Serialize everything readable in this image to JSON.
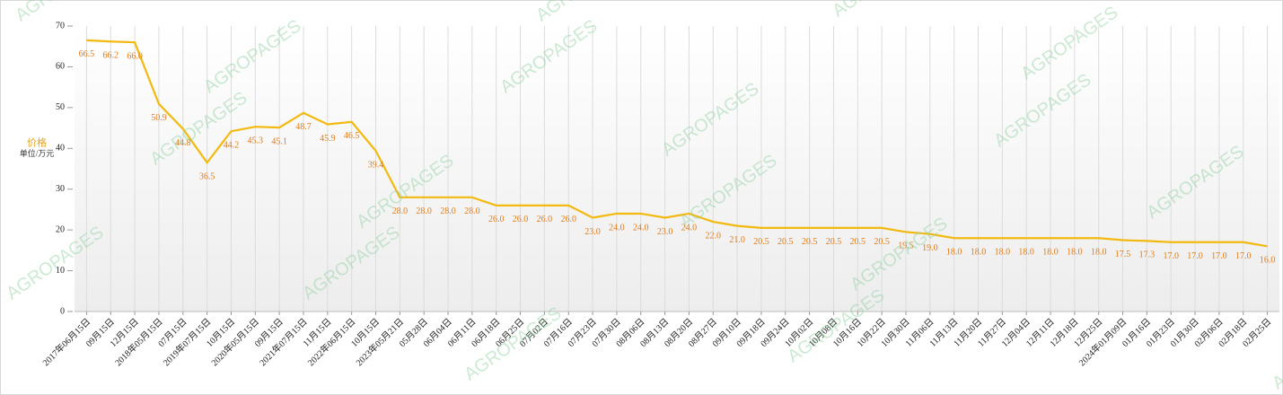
{
  "chart_data": {
    "type": "line",
    "y_label": "价格",
    "y_unit": "单位/万元",
    "watermark": "AGROPAGES",
    "categories": [
      "2017年06月15日",
      "09月15日",
      "12月15日",
      "2018年05月15日",
      "07月15日",
      "2019年07月15日",
      "10月15日",
      "2020年05月15日",
      "09月15日",
      "2021年07月15日",
      "11月15日",
      "2022年06月15日",
      "10月15日",
      "2023年05月21日",
      "05月28日",
      "06月04日",
      "06月11日",
      "06月18日",
      "06月25日",
      "07月02日",
      "07月16日",
      "07月23日",
      "07月30日",
      "08月06日",
      "08月13日",
      "08月20日",
      "08月27日",
      "09月10日",
      "09月18日",
      "09月24日",
      "10月02日",
      "10月08日",
      "10月16日",
      "10月22日",
      "10月30日",
      "11月06日",
      "11月13日",
      "11月20日",
      "11月27日",
      "12月04日",
      "12月11日",
      "12月18日",
      "12月25日",
      "2024年01月09日",
      "01月16日",
      "01月23日",
      "01月30日",
      "02月06日",
      "02月18日",
      "02月25日"
    ],
    "series": [
      {
        "name": "价格",
        "color": "#f2b90f",
        "values": [
          66.5,
          66.2,
          66.0,
          50.9,
          44.8,
          36.5,
          44.2,
          45.3,
          45.1,
          48.7,
          45.9,
          46.5,
          39.4,
          28.0,
          28.0,
          28.0,
          28.0,
          26.0,
          26.0,
          26.0,
          26.0,
          23.0,
          24.0,
          24.0,
          23.0,
          24.0,
          22.0,
          21.0,
          20.5,
          20.5,
          20.5,
          20.5,
          20.5,
          20.5,
          19.5,
          19.0,
          18.0,
          18.0,
          18.0,
          18.0,
          18.0,
          18.0,
          18.0,
          17.5,
          17.3,
          17.0,
          17.0,
          17.0,
          17.0,
          16.0
        ],
        "value_labels": [
          "66.5",
          "66.2",
          "66.0",
          "50.9",
          "44.8",
          "36.5",
          "44.2",
          "45.3",
          "45.1",
          "48.7",
          "45.9",
          "46.5",
          "39.4",
          "28.0",
          "28.0",
          "28.0",
          "28.0",
          "26.0",
          "26.0",
          "26.0",
          "26.0",
          "23.0",
          "24.0",
          "24.0",
          "23.0",
          "24.0",
          "22.0",
          "21.0",
          "20.5",
          "20.5",
          "20.5",
          "20.5",
          "20.5",
          "20.5",
          "19.5",
          "19.0",
          "18.0",
          "18.0",
          "18.0",
          "18.0",
          "18.0",
          "18.0",
          "18.0",
          "17.5",
          "17.3",
          "17.0",
          "17.0",
          "17.0",
          "17.0",
          "16.0"
        ]
      }
    ],
    "ylim": [
      0,
      70
    ],
    "yticks": [
      0,
      10,
      20,
      30,
      40,
      50,
      60,
      70
    ],
    "grid": true,
    "label_color": "#e07b1a"
  }
}
